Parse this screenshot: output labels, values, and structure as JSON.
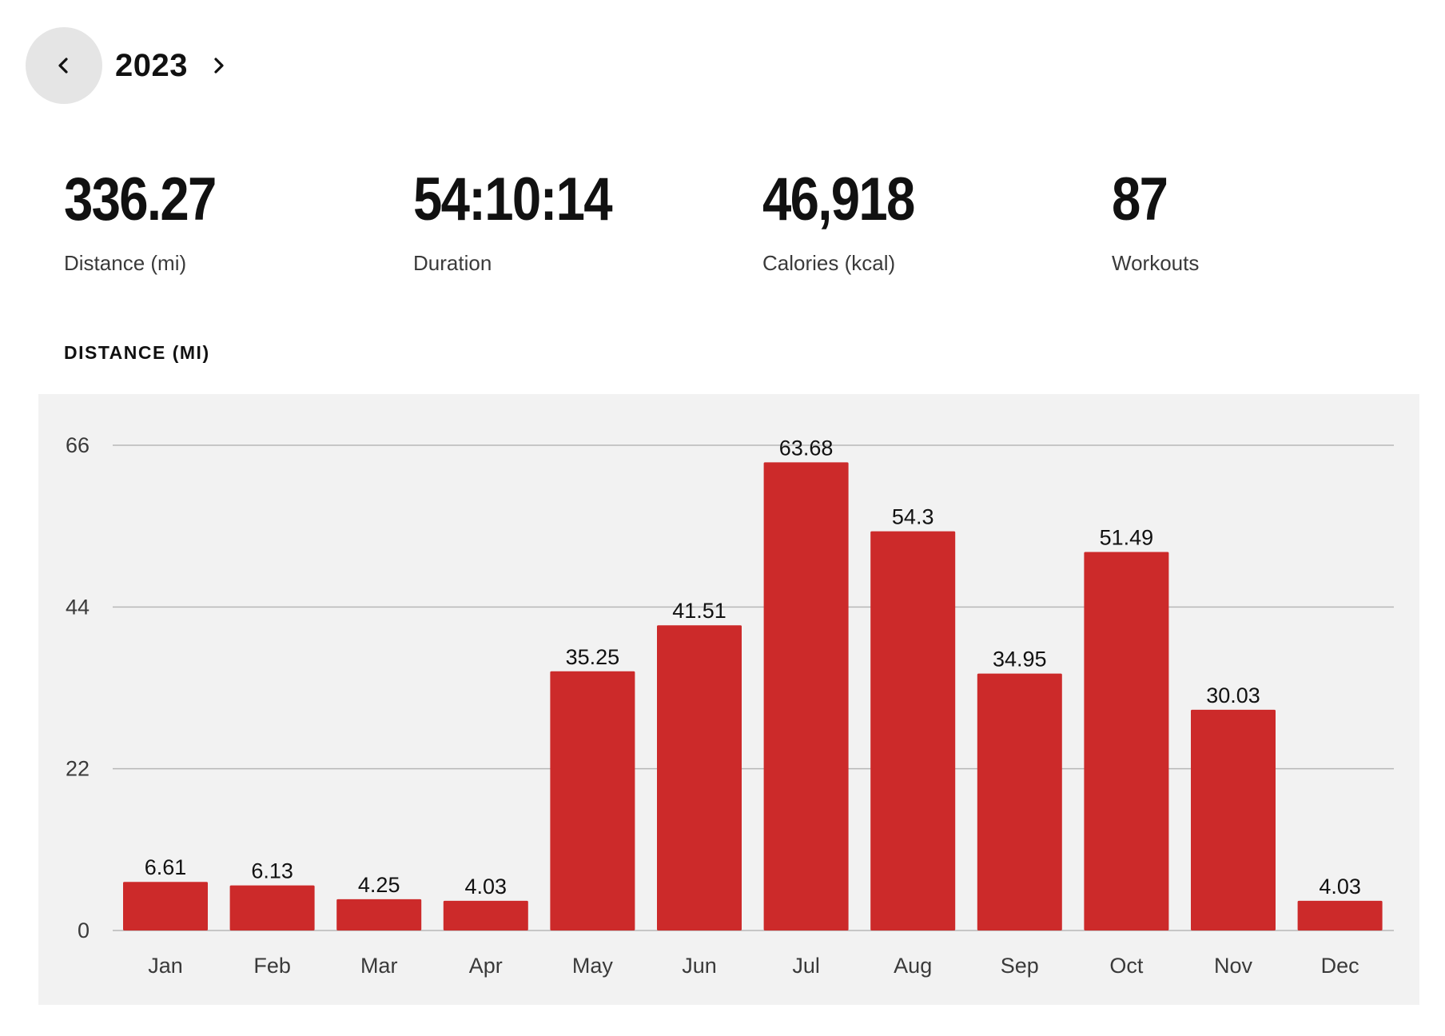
{
  "year_nav": {
    "year": "2023",
    "prev_icon": "chevron-left-icon",
    "next_icon": "chevron-right-icon"
  },
  "stats": [
    {
      "value": "336.27",
      "label": "Distance (mi)"
    },
    {
      "value": "54:10:14",
      "label": "Duration"
    },
    {
      "value": "46,918",
      "label": "Calories (kcal)"
    },
    {
      "value": "87",
      "label": "Workouts"
    }
  ],
  "colors": {
    "bar": "#cc2a2a",
    "panel_background": "#f2f2f2",
    "gridline": "#b8b8b8",
    "prev_button_background": "#e5e5e5"
  },
  "chart_data": {
    "type": "bar",
    "title": "DISTANCE (MI)",
    "categories": [
      "Jan",
      "Feb",
      "Mar",
      "Apr",
      "May",
      "Jun",
      "Jul",
      "Aug",
      "Sep",
      "Oct",
      "Nov",
      "Dec"
    ],
    "values": [
      6.61,
      6.13,
      4.25,
      4.03,
      35.25,
      41.51,
      63.68,
      54.3,
      34.95,
      51.49,
      30.03,
      4.03
    ],
    "data_labels": [
      "6.61",
      "6.13",
      "4.25",
      "4.03",
      "35.25",
      "41.51",
      "63.68",
      "54.3",
      "34.95",
      "51.49",
      "30.03",
      "4.03"
    ],
    "yticks": [
      0,
      22,
      44,
      66
    ],
    "ylim": [
      0,
      66
    ],
    "xlabel": "",
    "ylabel": "",
    "grid": true,
    "legend": false
  }
}
